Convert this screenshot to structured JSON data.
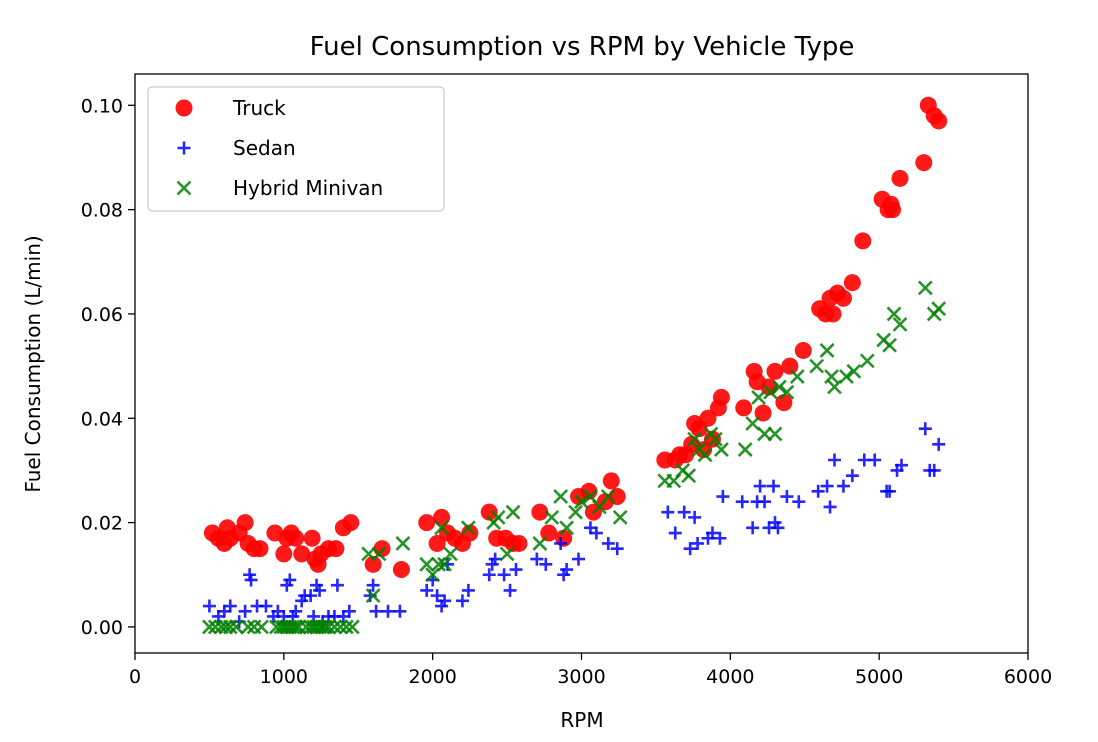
{
  "chart_data": {
    "type": "scatter",
    "title": "Fuel Consumption vs RPM by Vehicle Type",
    "xlabel": "RPM",
    "ylabel": "Fuel Consumption (L/min)",
    "xlim": [
      0,
      6000
    ],
    "ylim": [
      -0.005,
      0.106
    ],
    "xticks": [
      0,
      1000,
      2000,
      3000,
      4000,
      5000,
      6000
    ],
    "xtick_labels": [
      "0",
      "1000",
      "2000",
      "3000",
      "4000",
      "5000",
      "6000"
    ],
    "yticks": [
      0.0,
      0.02,
      0.04,
      0.06,
      0.08,
      0.1
    ],
    "ytick_labels": [
      "0.00",
      "0.02",
      "0.04",
      "0.06",
      "0.08",
      "0.10"
    ],
    "grid": false,
    "legend_position": "top-left",
    "series": [
      {
        "name": "Truck",
        "marker": "circle",
        "color": "#ff0000",
        "x": [
          520,
          560,
          600,
          620,
          640,
          700,
          740,
          760,
          800,
          840,
          940,
          1000,
          1020,
          1050,
          1080,
          1120,
          1190,
          1210,
          1230,
          1250,
          1300,
          1350,
          1400,
          1450,
          1600,
          1660,
          1790,
          1960,
          2030,
          2060,
          2100,
          2150,
          2200,
          2250,
          2380,
          2430,
          2490,
          2540,
          2580,
          2720,
          2780,
          2880,
          2980,
          3050,
          3080,
          3160,
          3200,
          3240,
          3560,
          3630,
          3660,
          3700,
          3740,
          3760,
          3790,
          3820,
          3850,
          3880,
          3920,
          3940,
          4090,
          4160,
          4180,
          4220,
          4260,
          4300,
          4360,
          4400,
          4490,
          4600,
          4640,
          4670,
          4690,
          4720,
          4760,
          4820,
          4890,
          5020,
          5060,
          5080,
          5090,
          5140,
          5300,
          5330,
          5370,
          5400
        ],
        "y": [
          0.018,
          0.017,
          0.016,
          0.019,
          0.017,
          0.018,
          0.02,
          0.016,
          0.015,
          0.015,
          0.018,
          0.014,
          0.017,
          0.018,
          0.017,
          0.014,
          0.017,
          0.013,
          0.012,
          0.014,
          0.015,
          0.015,
          0.019,
          0.02,
          0.012,
          0.015,
          0.011,
          0.02,
          0.016,
          0.021,
          0.018,
          0.017,
          0.016,
          0.018,
          0.022,
          0.017,
          0.017,
          0.016,
          0.016,
          0.022,
          0.018,
          0.017,
          0.025,
          0.026,
          0.022,
          0.024,
          0.028,
          0.025,
          0.032,
          0.032,
          0.033,
          0.033,
          0.035,
          0.039,
          0.038,
          0.034,
          0.04,
          0.036,
          0.042,
          0.044,
          0.042,
          0.049,
          0.047,
          0.041,
          0.046,
          0.049,
          0.043,
          0.05,
          0.053,
          0.061,
          0.06,
          0.063,
          0.06,
          0.064,
          0.063,
          0.066,
          0.074,
          0.082,
          0.08,
          0.081,
          0.08,
          0.086,
          0.089,
          0.1,
          0.098,
          0.097
        ]
      },
      {
        "name": "Sedan",
        "marker": "plus",
        "color": "#0000ff",
        "x": [
          500,
          560,
          600,
          640,
          700,
          740,
          770,
          780,
          820,
          880,
          930,
          960,
          1000,
          1020,
          1040,
          1060,
          1080,
          1120,
          1140,
          1180,
          1200,
          1220,
          1240,
          1260,
          1300,
          1340,
          1360,
          1400,
          1440,
          1580,
          1600,
          1620,
          1700,
          1780,
          1960,
          2000,
          2030,
          2060,
          2080,
          2100,
          2200,
          2240,
          2380,
          2400,
          2420,
          2480,
          2520,
          2560,
          2700,
          2760,
          2860,
          2880,
          2900,
          2980,
          3060,
          3100,
          3180,
          3240,
          3580,
          3630,
          3690,
          3730,
          3760,
          3780,
          3850,
          3880,
          3930,
          3950,
          4080,
          4150,
          4180,
          4200,
          4230,
          4260,
          4290,
          4300,
          4320,
          4380,
          4460,
          4590,
          4650,
          4670,
          4700,
          4760,
          4820,
          4900,
          4970,
          5050,
          5070,
          5120,
          5150,
          5310,
          5340,
          5370,
          5400
        ],
        "y": [
          0.004,
          0.002,
          0.003,
          0.004,
          0.001,
          0.003,
          0.01,
          0.009,
          0.004,
          0.004,
          0.002,
          0.003,
          0.002,
          0.008,
          0.009,
          0.002,
          0.003,
          0.005,
          0.006,
          0.006,
          0.002,
          0.008,
          0.007,
          0.001,
          0.002,
          0.002,
          0.008,
          0.002,
          0.003,
          0.006,
          0.008,
          0.003,
          0.003,
          0.003,
          0.007,
          0.009,
          0.006,
          0.004,
          0.005,
          0.012,
          0.005,
          0.007,
          0.01,
          0.012,
          0.013,
          0.01,
          0.007,
          0.011,
          0.013,
          0.012,
          0.016,
          0.01,
          0.011,
          0.013,
          0.019,
          0.018,
          0.016,
          0.015,
          0.022,
          0.018,
          0.022,
          0.015,
          0.021,
          0.016,
          0.017,
          0.018,
          0.017,
          0.025,
          0.024,
          0.019,
          0.024,
          0.027,
          0.024,
          0.019,
          0.027,
          0.02,
          0.019,
          0.025,
          0.024,
          0.026,
          0.027,
          0.023,
          0.032,
          0.027,
          0.029,
          0.032,
          0.032,
          0.026,
          0.026,
          0.03,
          0.031,
          0.038,
          0.03,
          0.03,
          0.035
        ]
      },
      {
        "name": "Hybrid Minivan",
        "marker": "x",
        "color": "#008000",
        "x": [
          500,
          540,
          580,
          610,
          640,
          680,
          760,
          800,
          850,
          950,
          980,
          1000,
          1020,
          1040,
          1060,
          1080,
          1100,
          1150,
          1180,
          1200,
          1220,
          1240,
          1260,
          1280,
          1300,
          1340,
          1380,
          1420,
          1460,
          1570,
          1600,
          1640,
          1800,
          1960,
          2000,
          2040,
          2060,
          2080,
          2120,
          2240,
          2410,
          2440,
          2500,
          2540,
          2720,
          2800,
          2860,
          2900,
          2960,
          3000,
          3060,
          3120,
          3180,
          3260,
          3560,
          3620,
          3680,
          3720,
          3760,
          3790,
          3830,
          3870,
          3900,
          3940,
          4100,
          4150,
          4190,
          4230,
          4270,
          4300,
          4330,
          4380,
          4450,
          4580,
          4650,
          4680,
          4700,
          4780,
          4830,
          4920,
          5030,
          5070,
          5100,
          5140,
          5310,
          5370,
          5400
        ],
        "y": [
          0.0,
          0.0,
          0.0,
          0.0,
          0.0,
          0.0,
          0.0,
          0.0,
          0.0,
          0.0,
          0.0,
          0.0,
          0.0,
          0.0,
          0.0,
          0.0,
          0.0,
          0.0,
          0.0,
          0.0,
          0.0,
          0.0,
          0.0,
          0.0,
          0.0,
          0.0,
          0.0,
          0.0,
          0.0,
          0.014,
          0.006,
          0.014,
          0.016,
          0.012,
          0.01,
          0.012,
          0.019,
          0.012,
          0.014,
          0.019,
          0.02,
          0.021,
          0.014,
          0.022,
          0.016,
          0.021,
          0.025,
          0.019,
          0.022,
          0.024,
          0.025,
          0.023,
          0.025,
          0.021,
          0.028,
          0.028,
          0.03,
          0.029,
          0.036,
          0.034,
          0.033,
          0.037,
          0.036,
          0.034,
          0.034,
          0.039,
          0.044,
          0.037,
          0.045,
          0.037,
          0.046,
          0.045,
          0.048,
          0.05,
          0.053,
          0.048,
          0.046,
          0.048,
          0.049,
          0.051,
          0.055,
          0.054,
          0.06,
          0.058,
          0.065,
          0.06,
          0.061
        ]
      }
    ]
  }
}
